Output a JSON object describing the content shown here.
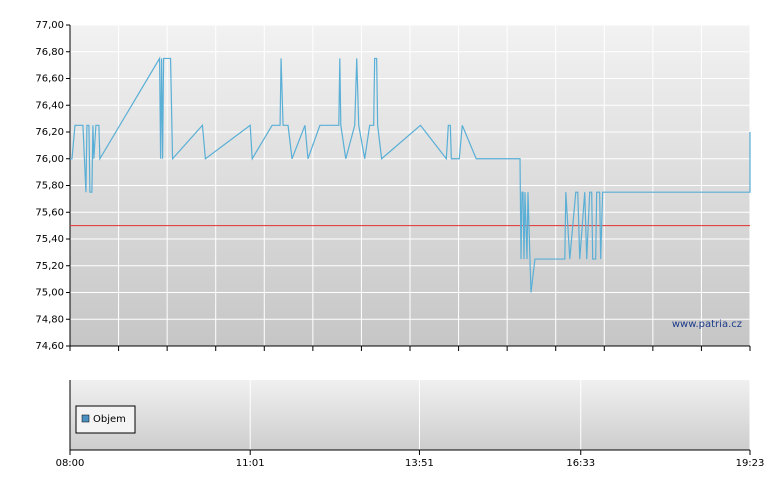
{
  "chart_data": {
    "type": "line",
    "x": [
      480,
      482,
      485,
      493,
      496,
      497,
      499,
      500,
      502,
      503,
      504,
      506,
      509,
      510,
      570,
      571,
      572,
      573,
      574,
      581,
      583,
      613,
      616,
      661,
      663,
      683,
      691,
      692,
      694,
      699,
      703,
      716,
      719,
      731,
      750,
      751,
      752,
      757,
      766,
      768,
      770,
      776,
      781,
      785,
      786,
      788,
      789,
      793,
      832,
      858,
      860,
      862,
      863,
      871,
      874,
      888,
      932,
      933,
      934,
      935,
      936,
      937,
      939,
      940,
      943,
      947,
      977,
      978,
      982,
      988,
      990,
      992,
      997,
      999,
      1002,
      1004,
      1005,
      1008,
      1009,
      1012,
      1013,
      1015,
      1163,
      1163
    ],
    "values": [
      76.0,
      76.0,
      76.25,
      76.25,
      75.75,
      76.25,
      76.25,
      75.75,
      75.75,
      76.25,
      76.0,
      76.25,
      76.25,
      76.0,
      76.75,
      76.0,
      76.75,
      76.0,
      76.75,
      76.75,
      76.0,
      76.25,
      76.0,
      76.25,
      76.0,
      76.25,
      76.25,
      76.75,
      76.25,
      76.25,
      76.0,
      76.25,
      76.0,
      76.25,
      76.25,
      76.75,
      76.25,
      76.0,
      76.25,
      76.75,
      76.25,
      76.0,
      76.25,
      76.25,
      76.75,
      76.75,
      76.25,
      76.0,
      76.25,
      76.0,
      76.25,
      76.25,
      76.0,
      76.0,
      76.25,
      76.0,
      76.0,
      75.25,
      75.75,
      75.75,
      75.25,
      75.75,
      75.25,
      75.75,
      75.0,
      75.25,
      75.25,
      75.75,
      75.25,
      75.75,
      75.75,
      75.25,
      75.75,
      75.25,
      75.75,
      75.75,
      75.25,
      75.25,
      75.75,
      75.75,
      75.25,
      75.75,
      75.75,
      76.2
    ],
    "color": "#5aafd6",
    "xlim": [
      480,
      1163
    ],
    "xticks": [
      {
        "value": 480,
        "label": "08:00"
      },
      {
        "value": 661,
        "label": "11:01"
      },
      {
        "value": 831,
        "label": "13:51"
      },
      {
        "value": 993,
        "label": "16:33"
      },
      {
        "value": 1163,
        "label": "19:23"
      }
    ],
    "ylim": [
      74.6,
      77.0
    ],
    "yticks": [
      {
        "value": 74.6,
        "label": "74,60"
      },
      {
        "value": 74.8,
        "label": "74,80"
      },
      {
        "value": 75.0,
        "label": "75,00"
      },
      {
        "value": 75.2,
        "label": "75,20"
      },
      {
        "value": 75.4,
        "label": "75,40"
      },
      {
        "value": 75.6,
        "label": "75,60"
      },
      {
        "value": 75.8,
        "label": "75,80"
      },
      {
        "value": 76.0,
        "label": "76,00"
      },
      {
        "value": 76.2,
        "label": "76,20"
      },
      {
        "value": 76.4,
        "label": "76,40"
      },
      {
        "value": 76.6,
        "label": "76,60"
      },
      {
        "value": 76.8,
        "label": "76,80"
      },
      {
        "value": 77.0,
        "label": "77,00"
      }
    ],
    "reference_line": {
      "value": 75.5,
      "color": "#e03030"
    },
    "watermark": "www.patria.cz",
    "volume_panel": {
      "legend": "Objem",
      "color": "#4a90c0"
    },
    "grid": true
  }
}
